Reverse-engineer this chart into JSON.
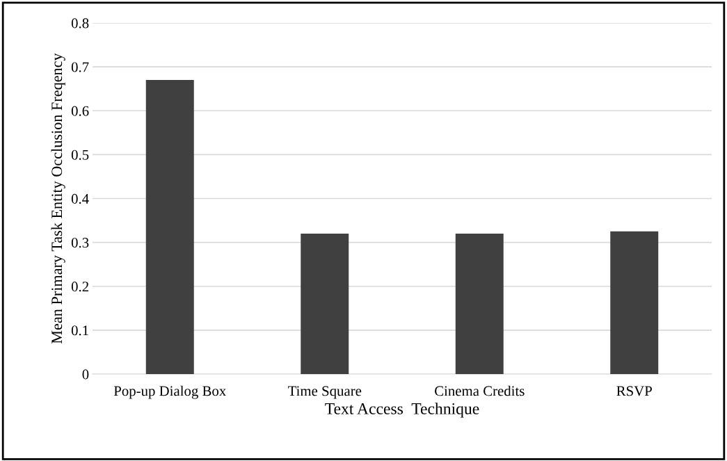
{
  "chart_data": {
    "type": "bar",
    "xlabel": "Text Access  Technique",
    "ylabel": "Mean Primary Task Entity Occlusion Freqency",
    "categories": [
      "Pop-up Dialog Box",
      "Time Square",
      "Cinema Credits",
      "RSVP"
    ],
    "values": [
      0.67,
      0.32,
      0.32,
      0.325
    ],
    "color": "#404040",
    "ylim": [
      0,
      0.8
    ],
    "yticks": [
      {
        "value": 0,
        "label": "0"
      },
      0.1,
      0.2,
      0.3,
      0.4,
      0.5,
      0.6,
      0.7,
      0.8
    ],
    "grid": "y",
    "legend": false
  }
}
